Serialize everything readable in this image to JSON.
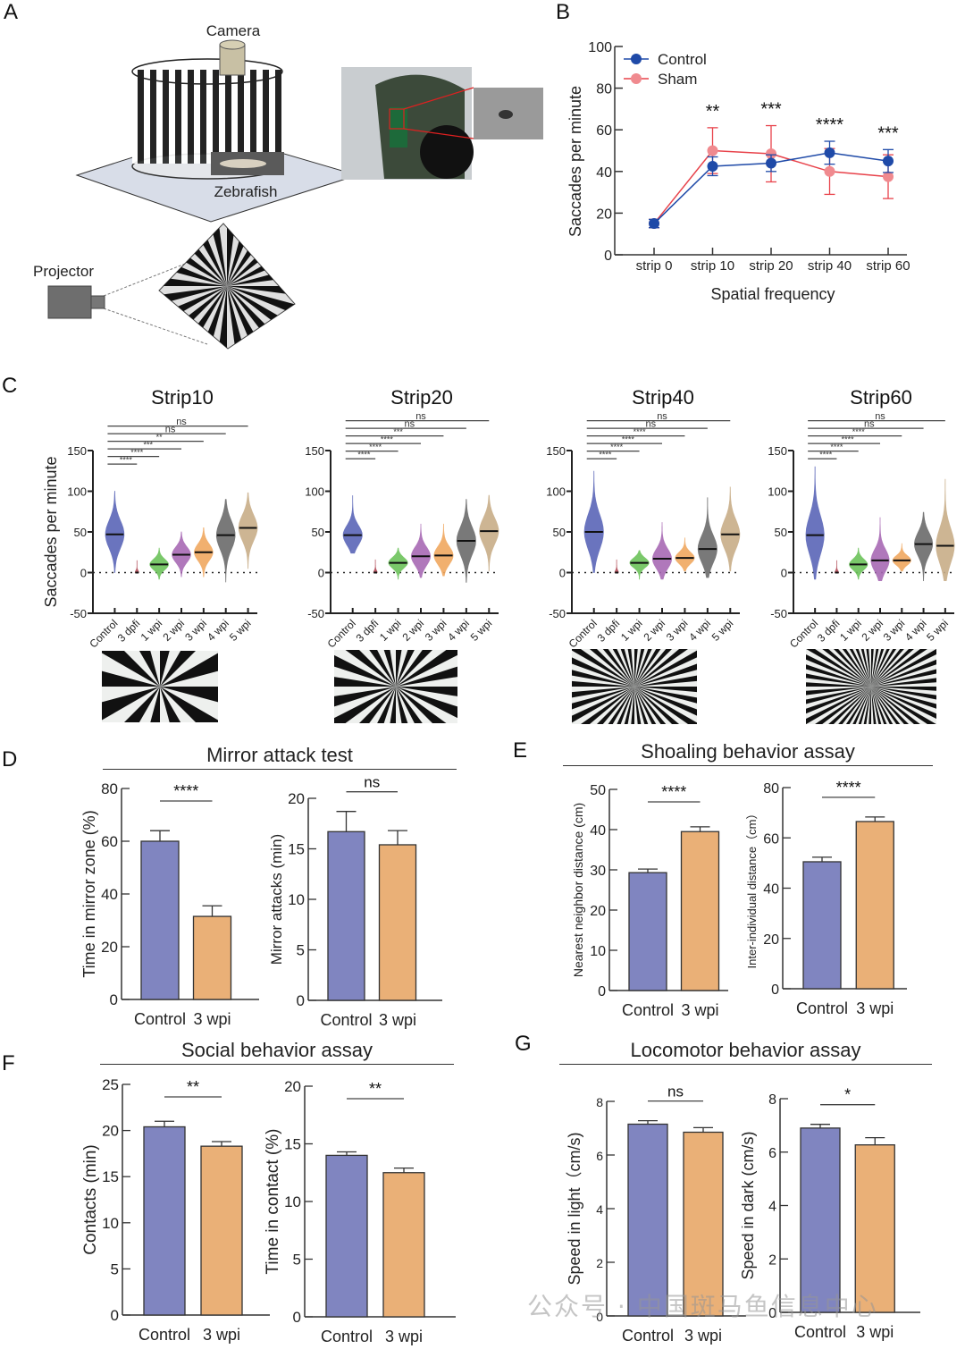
{
  "panels": {
    "A": {
      "letter": "A",
      "labels": {
        "camera": "Camera",
        "zebrafish": "Zebrafish",
        "projector": "Projector"
      }
    },
    "B": {
      "letter": "B"
    },
    "C": {
      "letter": "C"
    },
    "D": {
      "letter": "D",
      "section_title": "Mirror attack test"
    },
    "E": {
      "letter": "E",
      "section_title": "Shoaling behavior assay"
    },
    "F": {
      "letter": "F",
      "section_title": "Social behavior assay"
    },
    "G": {
      "letter": "G",
      "section_title": "Locomotor behavior assay"
    }
  },
  "colors": {
    "control_line": "#1f4aa8",
    "sham_line": "#e8424a",
    "sham_marker": "#f08a8f",
    "bar_control": "#8085c0",
    "bar_3wpi": "#eab077",
    "violin": [
      "#5a66b8",
      "#b04a56",
      "#6cc35a",
      "#a86ab4",
      "#f0a860",
      "#6b6b6b",
      "#c8ad88"
    ]
  },
  "watermark": "公众号 · 中国斑马鱼信息中心",
  "chart_data": [
    {
      "id": "B",
      "type": "line",
      "title": "",
      "xlabel": "Spatial frequency",
      "ylabel": "Saccades per minute",
      "categories": [
        "strip 0",
        "strip 10",
        "strip 20",
        "strip 40",
        "strip 60"
      ],
      "ylim": [
        0,
        100
      ],
      "yticks": [
        0,
        20,
        40,
        60,
        80,
        100
      ],
      "legend": "top-left",
      "series": [
        {
          "name": "Control",
          "values": [
            15,
            42.5,
            44,
            49,
            45
          ],
          "error": [
            2,
            4.5,
            4,
            5.5,
            5.5
          ]
        },
        {
          "name": "Sham",
          "values": [
            15,
            50,
            48.5,
            40,
            37.5
          ],
          "error": [
            2,
            11,
            13.5,
            11,
            10.5
          ]
        }
      ],
      "annotations": [
        "",
        "**",
        "***",
        "****",
        "***"
      ]
    },
    {
      "id": "C-strip10",
      "type": "violin",
      "title": "Strip10",
      "ylabel": "Saccades per minute",
      "categories": [
        "Control",
        "3 dpfi",
        "1 wpi",
        "2 wpi",
        "3 wpi",
        "4 wpi",
        "5 wpi"
      ],
      "ylim": [
        -50,
        150
      ],
      "yticks": [
        -50,
        0,
        50,
        100,
        150
      ],
      "medians": [
        47,
        0,
        10,
        22,
        25,
        46,
        55
      ],
      "ranges": [
        [
          0,
          100
        ],
        [
          0,
          15
        ],
        [
          -8,
          30
        ],
        [
          -5,
          50
        ],
        [
          -5,
          55
        ],
        [
          -12,
          90
        ],
        [
          5,
          98
        ]
      ],
      "comparisons": [
        {
          "to": "3 dpfi",
          "label": "****"
        },
        {
          "to": "1 wpi",
          "label": "****"
        },
        {
          "to": "2 wpi",
          "label": "***"
        },
        {
          "to": "3 wpi",
          "label": "**"
        },
        {
          "to": "4 wpi",
          "label": "ns"
        },
        {
          "to": "5 wpi",
          "label": "ns"
        }
      ]
    },
    {
      "id": "C-strip20",
      "type": "violin",
      "title": "Strip20",
      "ylabel": "",
      "categories": [
        "Control",
        "3 dpfi",
        "1 wpi",
        "2 wpi",
        "3 wpi",
        "4 wpi",
        "5 wpi"
      ],
      "ylim": [
        -50,
        150
      ],
      "yticks": [
        -50,
        0,
        50,
        100,
        150
      ],
      "medians": [
        46,
        0,
        12,
        20,
        21,
        39,
        51
      ],
      "ranges": [
        [
          24,
          95
        ],
        [
          0,
          16
        ],
        [
          -8,
          30
        ],
        [
          -6,
          60
        ],
        [
          -4,
          60
        ],
        [
          -12,
          90
        ],
        [
          2,
          95
        ]
      ],
      "comparisons": [
        {
          "to": "3 dpfi",
          "label": "****"
        },
        {
          "to": "1 wpi",
          "label": "****"
        },
        {
          "to": "2 wpi",
          "label": "****"
        },
        {
          "to": "3 wpi",
          "label": "***"
        },
        {
          "to": "4 wpi",
          "label": "ns"
        },
        {
          "to": "5 wpi",
          "label": "ns"
        }
      ]
    },
    {
      "id": "C-strip40",
      "type": "violin",
      "title": "Strip40",
      "ylabel": "",
      "categories": [
        "Control",
        "3 dpfi",
        "1 wpi",
        "2 wpi",
        "3 wpi",
        "4 wpi",
        "5 wpi"
      ],
      "ylim": [
        -50,
        150
      ],
      "yticks": [
        -50,
        0,
        50,
        100,
        150
      ],
      "medians": [
        50,
        0,
        12,
        17,
        18,
        29,
        47
      ],
      "ranges": [
        [
          0,
          125
        ],
        [
          0,
          16
        ],
        [
          -8,
          27
        ],
        [
          -8,
          62
        ],
        [
          2,
          43
        ],
        [
          -6,
          92
        ],
        [
          2,
          105
        ]
      ],
      "comparisons": [
        {
          "to": "3 dpfi",
          "label": "****"
        },
        {
          "to": "1 wpi",
          "label": "****"
        },
        {
          "to": "2 wpi",
          "label": "****"
        },
        {
          "to": "3 wpi",
          "label": "****"
        },
        {
          "to": "4 wpi",
          "label": "ns"
        },
        {
          "to": "5 wpi",
          "label": "ns"
        }
      ]
    },
    {
      "id": "C-strip60",
      "type": "violin",
      "title": "Strip60",
      "ylabel": "",
      "categories": [
        "Control",
        "3 dpfi",
        "1 wpi",
        "2 wpi",
        "3 wpi",
        "4 wpi",
        "5 wpi"
      ],
      "ylim": [
        -50,
        150
      ],
      "yticks": [
        -50,
        0,
        50,
        100,
        150
      ],
      "medians": [
        46,
        0,
        10,
        15,
        15,
        35,
        33
      ],
      "ranges": [
        [
          -8,
          130
        ],
        [
          0,
          15
        ],
        [
          -8,
          30
        ],
        [
          -10,
          68
        ],
        [
          2,
          36
        ],
        [
          -10,
          74
        ],
        [
          -10,
          115
        ]
      ],
      "comparisons": [
        {
          "to": "3 dpfi",
          "label": "****"
        },
        {
          "to": "1 wpi",
          "label": "****"
        },
        {
          "to": "2 wpi",
          "label": "****"
        },
        {
          "to": "3 wpi",
          "label": "****"
        },
        {
          "to": "4 wpi",
          "label": "ns"
        },
        {
          "to": "5 wpi",
          "label": "ns"
        }
      ]
    },
    {
      "id": "D-left",
      "type": "bar",
      "ylabel": "Time in mirror zone (%)",
      "categories": [
        "Control",
        "3 wpi"
      ],
      "values": [
        60,
        31.5
      ],
      "error": [
        4,
        4
      ],
      "ylim": [
        0,
        80
      ],
      "yticks": [
        0,
        20,
        40,
        60,
        80
      ],
      "significance": "****"
    },
    {
      "id": "D-right",
      "type": "bar",
      "ylabel": "Mirror attacks (min)",
      "categories": [
        "Control",
        "3 wpi"
      ],
      "values": [
        16.7,
        15.4
      ],
      "error": [
        2,
        1.4
      ],
      "ylim": [
        0,
        20
      ],
      "yticks": [
        0,
        5,
        10,
        15,
        20
      ],
      "significance": "ns"
    },
    {
      "id": "E-left",
      "type": "bar",
      "ylabel": "Nearest neighbor distance (cm)",
      "categories": [
        "Control",
        "3 wpi"
      ],
      "values": [
        29.3,
        39.5
      ],
      "error": [
        0.9,
        1.2
      ],
      "ylim": [
        0,
        50
      ],
      "yticks": [
        0,
        10,
        20,
        30,
        40,
        50
      ],
      "significance": "****"
    },
    {
      "id": "E-right",
      "type": "bar",
      "ylabel": "Inter-individual distance（cm）",
      "categories": [
        "Control",
        "3 wpi"
      ],
      "values": [
        50.5,
        66.5
      ],
      "error": [
        1.8,
        1.8
      ],
      "ylim": [
        0,
        80
      ],
      "yticks": [
        0,
        20,
        40,
        60,
        80
      ],
      "significance": "****"
    },
    {
      "id": "F-left",
      "type": "bar",
      "ylabel": "Contacts (min)",
      "categories": [
        "Control",
        "3 wpi"
      ],
      "values": [
        20.4,
        18.3
      ],
      "error": [
        0.6,
        0.5
      ],
      "ylim": [
        0,
        25
      ],
      "yticks": [
        0,
        5,
        10,
        15,
        20,
        25
      ],
      "significance": "**"
    },
    {
      "id": "F-right",
      "type": "bar",
      "ylabel": "Time in contact (%)",
      "categories": [
        "Control",
        "3 wpi"
      ],
      "values": [
        14,
        12.5
      ],
      "error": [
        0.3,
        0.4
      ],
      "ylim": [
        0,
        20
      ],
      "yticks": [
        0,
        5,
        10,
        15,
        20
      ],
      "significance": "**"
    },
    {
      "id": "G-left",
      "type": "bar",
      "ylabel": "Speed in light（cm/s)",
      "categories": [
        "Control",
        "3 wpi"
      ],
      "values": [
        7.15,
        6.85
      ],
      "error": [
        0.13,
        0.17
      ],
      "ylim": [
        0,
        8
      ],
      "yticks": [
        0,
        2,
        4,
        6,
        8
      ],
      "significance": "ns"
    },
    {
      "id": "G-right",
      "type": "bar",
      "ylabel": "Speed in dark (cm/s)",
      "categories": [
        "Control",
        "3 wpi"
      ],
      "values": [
        6.9,
        6.27
      ],
      "error": [
        0.14,
        0.27
      ],
      "ylim": [
        0,
        8
      ],
      "yticks": [
        0,
        2,
        4,
        6,
        8
      ],
      "significance": "*"
    }
  ]
}
